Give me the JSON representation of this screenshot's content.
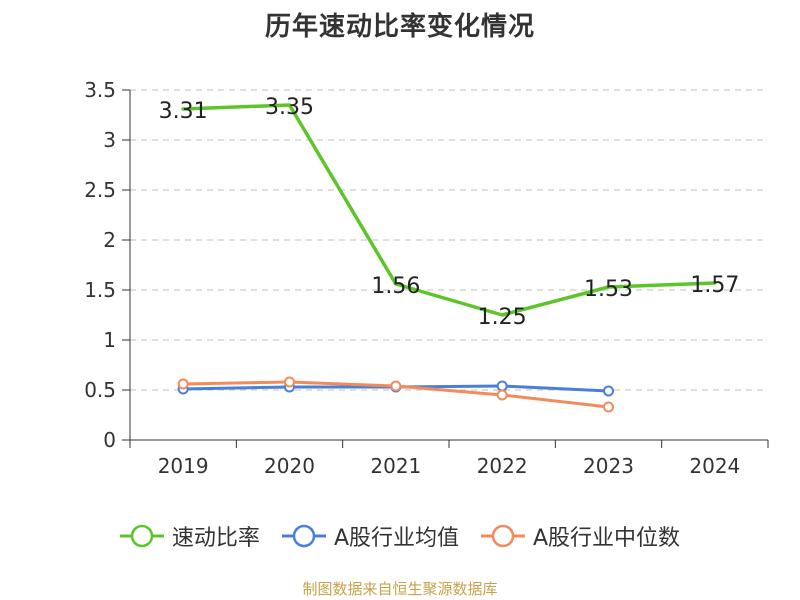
{
  "chart_data": {
    "type": "line",
    "title": "历年速动比率变化情况",
    "categories": [
      "2019",
      "2020",
      "2021",
      "2022",
      "2023",
      "2024"
    ],
    "ylim": [
      0,
      3.5
    ],
    "yticks": [
      "0",
      "0.5",
      "1",
      "1.5",
      "2",
      "2.5",
      "3",
      "3.5"
    ],
    "grid": true,
    "legend_position": "bottom",
    "series": [
      {
        "name": "速动比率",
        "color": "#5cc52a",
        "values": [
          3.31,
          3.35,
          1.56,
          1.25,
          1.53,
          1.57
        ],
        "labels": [
          "3.31",
          "3.35",
          "1.56",
          "1.25",
          "1.53",
          "1.57"
        ],
        "show_markers": false,
        "show_labels": true
      },
      {
        "name": "A股行业均值",
        "color": "#4a7fd9",
        "values": [
          0.51,
          0.53,
          0.53,
          0.54,
          0.49,
          null
        ],
        "show_markers": true,
        "show_labels": false
      },
      {
        "name": "A股行业中位数",
        "color": "#f28b5b",
        "values": [
          0.56,
          0.58,
          0.54,
          0.45,
          0.33,
          null
        ],
        "show_markers": true,
        "show_labels": false
      }
    ]
  },
  "footer": {
    "source": "制图数据来自恒生聚源数据库"
  }
}
